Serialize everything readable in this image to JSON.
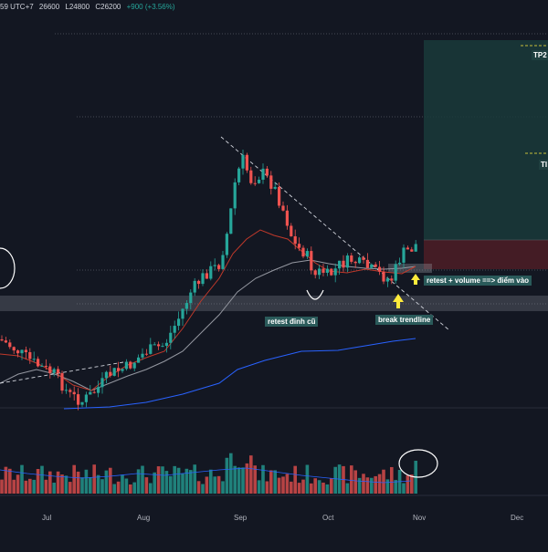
{
  "header": {
    "time_fragment": "59 UTC+7",
    "open": "26600",
    "low": "L24800",
    "close": "C26200",
    "change": "+900 (+3.56%)"
  },
  "annotations": {
    "retest_volume": "retest + volume ==> điểm vào",
    "retest_old_top": "retest đỉnh cũ",
    "break_trendline": "break trendline",
    "tp2": "TP2",
    "tp1": "TI"
  },
  "x_axis_labels": [
    "Jul",
    "Aug",
    "Sep",
    "Oct",
    "Nov",
    "Dec"
  ],
  "colors": {
    "background": "#131722",
    "bull": "#26a69a",
    "bear": "#ef5350",
    "ma_fast": "#c0392b",
    "ma_slow": "#9598a1",
    "ma_long": "#2962ff",
    "target_zone": "#1a3a3a",
    "stop_zone": "#4a1d26",
    "arrow": "#ffeb3b"
  }
}
